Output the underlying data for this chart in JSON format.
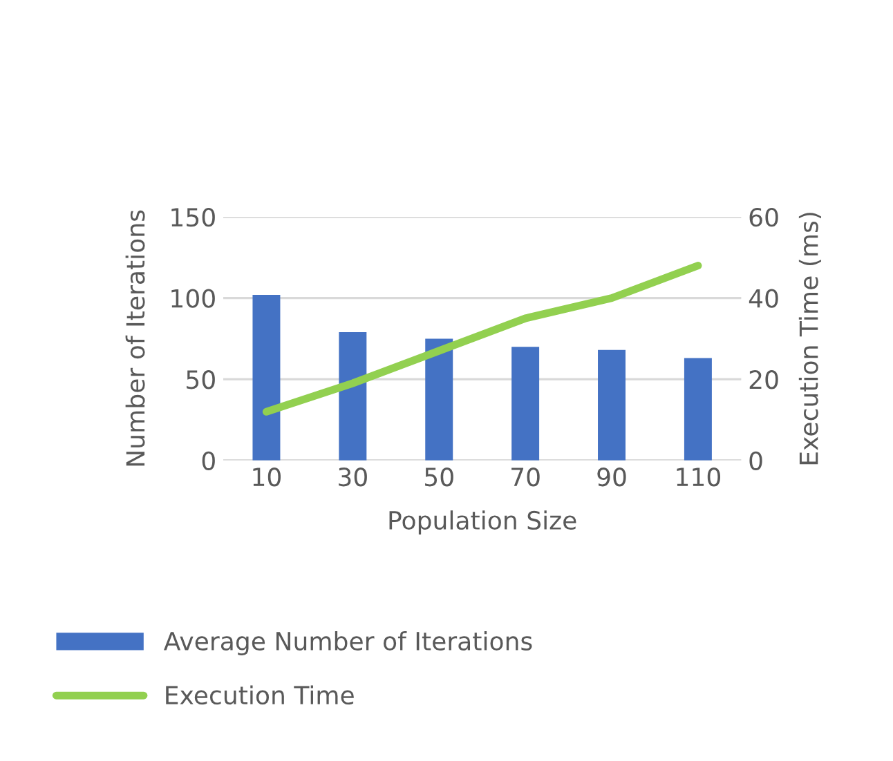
{
  "chart_data": {
    "type": "bar",
    "xlabel": "Population Size",
    "ylabel": "Number of Iterations",
    "y2label": "Execution Time (ms)",
    "categories": [
      "10",
      "30",
      "50",
      "70",
      "90",
      "110"
    ],
    "series": [
      {
        "name": "Average Number of Iterations",
        "color": "#4472c4",
        "values": [
          102,
          79,
          75,
          70,
          68,
          63
        ]
      },
      {
        "name": "Execution Time",
        "type": "line",
        "axis": "y2",
        "color": "#92d050",
        "values": [
          12,
          19,
          27,
          35,
          40,
          48
        ]
      }
    ],
    "ylim": [
      0,
      150
    ],
    "yticks": [
      0,
      50,
      100,
      150
    ],
    "y2lim": [
      0,
      60
    ],
    "y2ticks": [
      0,
      20,
      40,
      60
    ],
    "grid": "y",
    "legend": "bottom"
  }
}
